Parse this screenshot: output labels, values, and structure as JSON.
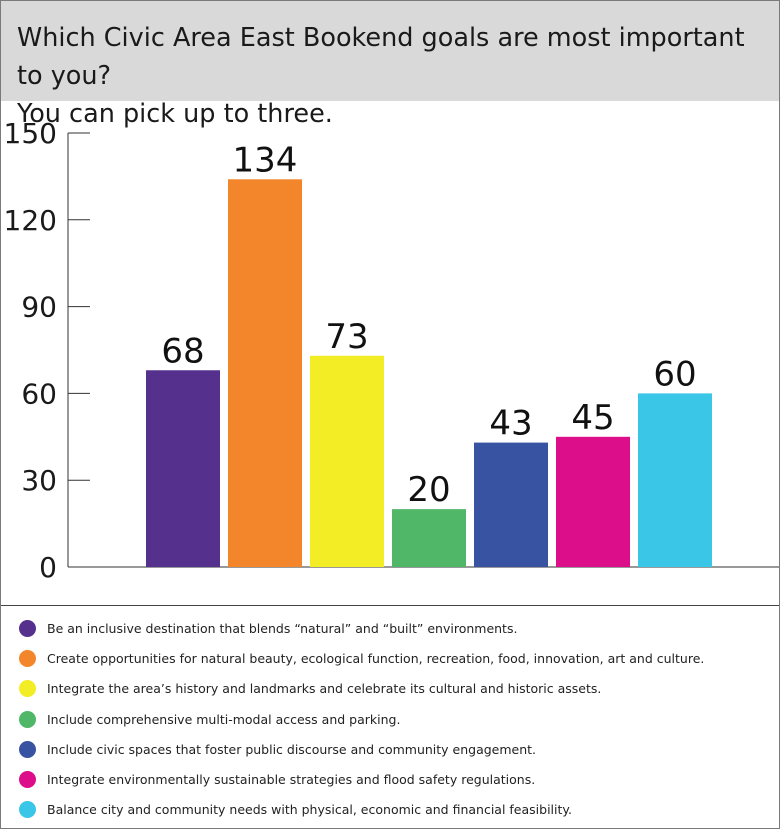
{
  "title": "Which Civic Area East Bookend goals are most important to you?\nYou can pick up to three.",
  "chart_data": {
    "type": "bar",
    "title": "Which Civic Area East Bookend goals are most important to you? You can pick up to three.",
    "ylim": [
      0,
      150
    ],
    "yticks": [
      0,
      30,
      60,
      90,
      120,
      150
    ],
    "ytick_labels": [
      "0",
      "30",
      "60",
      "90",
      "120",
      "150"
    ],
    "grid": false,
    "legend_position": "bottom",
    "categories": [
      "Be an inclusive destination that blends “natural” and “built” environments.",
      "Create opportunities for natural beauty, ecological function, recreation, food, innovation, art and culture.",
      "Integrate the area’s history and landmarks and celebrate its cultural and historic assets.",
      "Include comprehensive multi-modal access and parking.",
      "Include civic spaces that foster public discourse and community engagement.",
      "Integrate environmentally sustainable strategies and flood safety regulations.",
      "Balance city and community needs with physical, economic and financial feasibility."
    ],
    "values": [
      68,
      134,
      73,
      20,
      43,
      45,
      60
    ],
    "value_labels": [
      "68",
      "134",
      "73",
      "20",
      "43",
      "45",
      "60"
    ],
    "colors": [
      "#56308d",
      "#f3852a",
      "#f2ed24",
      "#4fb767",
      "#3953a3",
      "#dd0e8a",
      "#3ac6e6"
    ]
  }
}
